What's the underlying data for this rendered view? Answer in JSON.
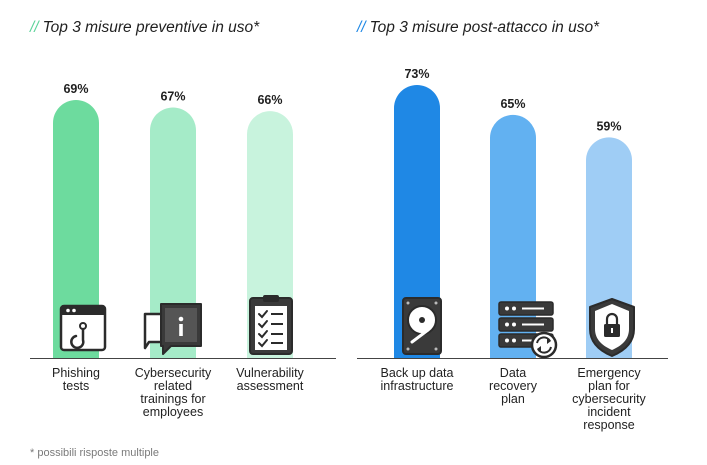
{
  "footnote": "* possibili risposte multiple",
  "colors": {
    "green_accent": "#5dd39a",
    "blue_accent": "#1e88e5",
    "green_bars": [
      "#6ddb9e",
      "#a5ebc8",
      "#c8f3dd"
    ],
    "blue_bars": [
      "#1f88e5",
      "#62b1f1",
      "#9fcdf5"
    ]
  },
  "chart_data": [
    {
      "type": "bar",
      "title_slashes": "//",
      "title": "Top 3 misure preventive in uso*",
      "categories": [
        "Phishing\ntests",
        "Cybersecurity\nrelated\ntrainings for\nemployees",
        "Vulnerability\nassessment"
      ],
      "values": [
        69,
        67,
        66
      ],
      "value_labels": [
        "69%",
        "67%",
        "66%"
      ],
      "icons": [
        "phishing-hook-icon",
        "training-presentation-icon",
        "checklist-clipboard-icon"
      ]
    },
    {
      "type": "bar",
      "title_slashes": "//",
      "title": "Top 3 misure post-attacco in uso*",
      "categories": [
        "Back up data\ninfrastructure",
        "Data\nrecovery\nplan",
        "Emergency\nplan for\ncybersecurity\nincident\nresponse"
      ],
      "values": [
        73,
        65,
        59
      ],
      "value_labels": [
        "73%",
        "65%",
        "59%"
      ],
      "icons": [
        "hard-drive-icon",
        "server-recovery-icon",
        "shield-lock-icon"
      ]
    }
  ]
}
